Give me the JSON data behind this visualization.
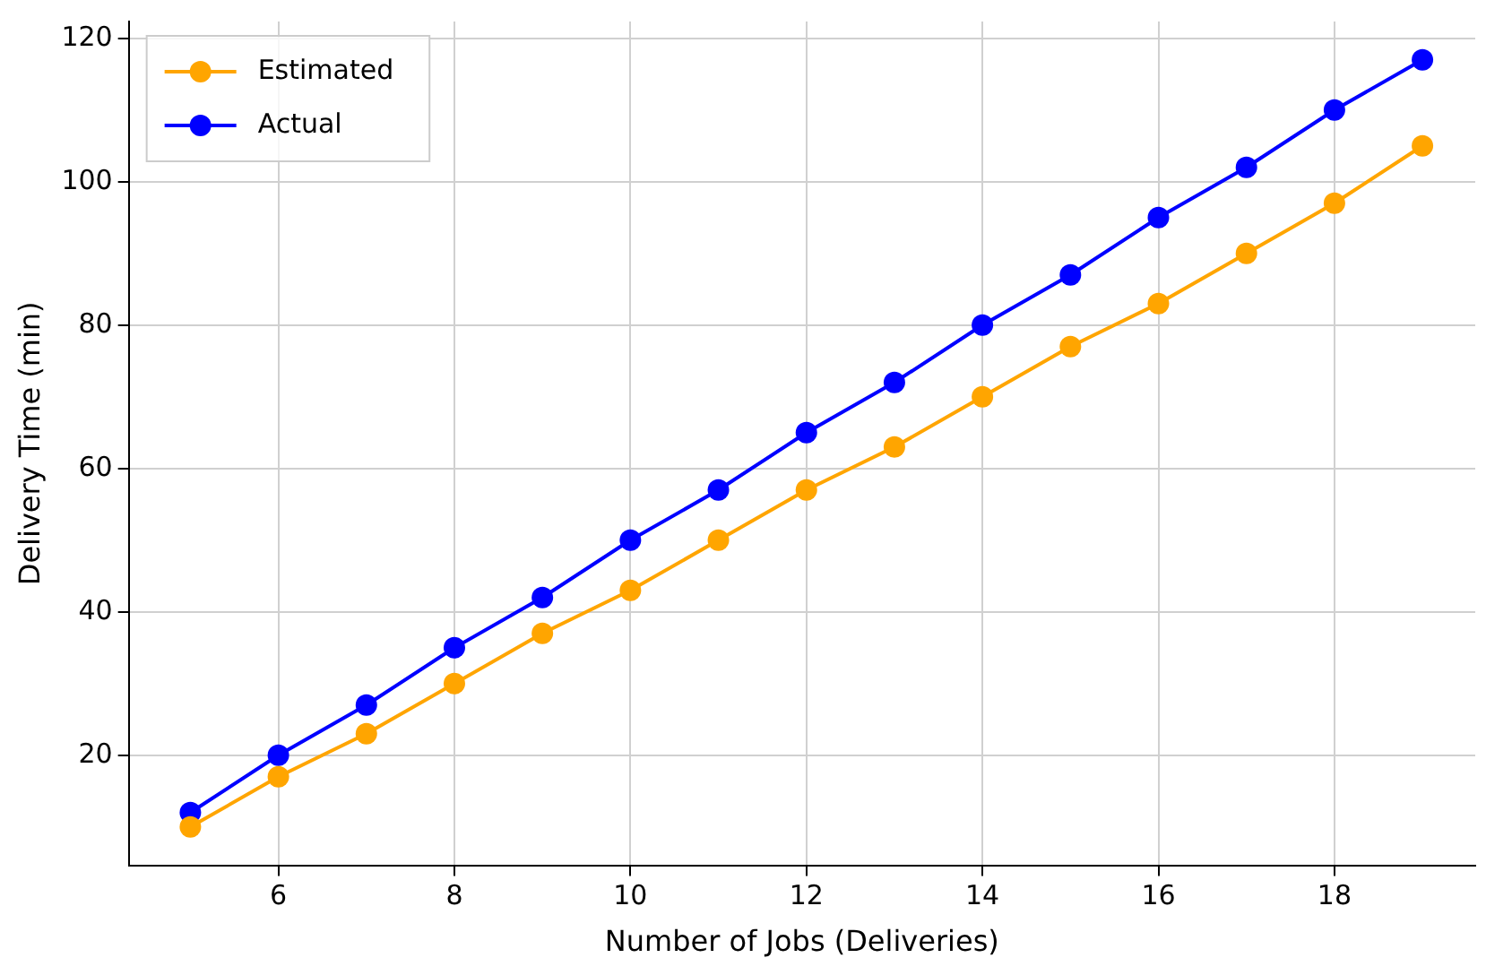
{
  "chart_data": {
    "type": "line",
    "xlabel": "Number of Jobs (Deliveries)",
    "ylabel": "Delivery Time (min)",
    "x": [
      5,
      6,
      7,
      8,
      9,
      10,
      11,
      12,
      13,
      14,
      15,
      16,
      17,
      18,
      19
    ],
    "series": [
      {
        "name": "Estimated",
        "color": "#ffa500",
        "values": [
          10,
          17,
          23,
          30,
          37,
          43,
          50,
          57,
          63,
          70,
          77,
          83,
          90,
          97,
          105
        ]
      },
      {
        "name": "Actual",
        "color": "#0000ff",
        "values": [
          12,
          20,
          27,
          35,
          42,
          50,
          57,
          65,
          72,
          80,
          87,
          95,
          102,
          110,
          117
        ]
      }
    ],
    "xlim": [
      4.3,
      19.6
    ],
    "ylim": [
      4.65,
      122.35
    ],
    "xticks": [
      6,
      8,
      10,
      12,
      14,
      16,
      18
    ],
    "yticks": [
      20,
      40,
      60,
      80,
      100,
      120
    ],
    "grid": true,
    "legend": "top left",
    "marker": "circle",
    "line_style": "solid"
  }
}
